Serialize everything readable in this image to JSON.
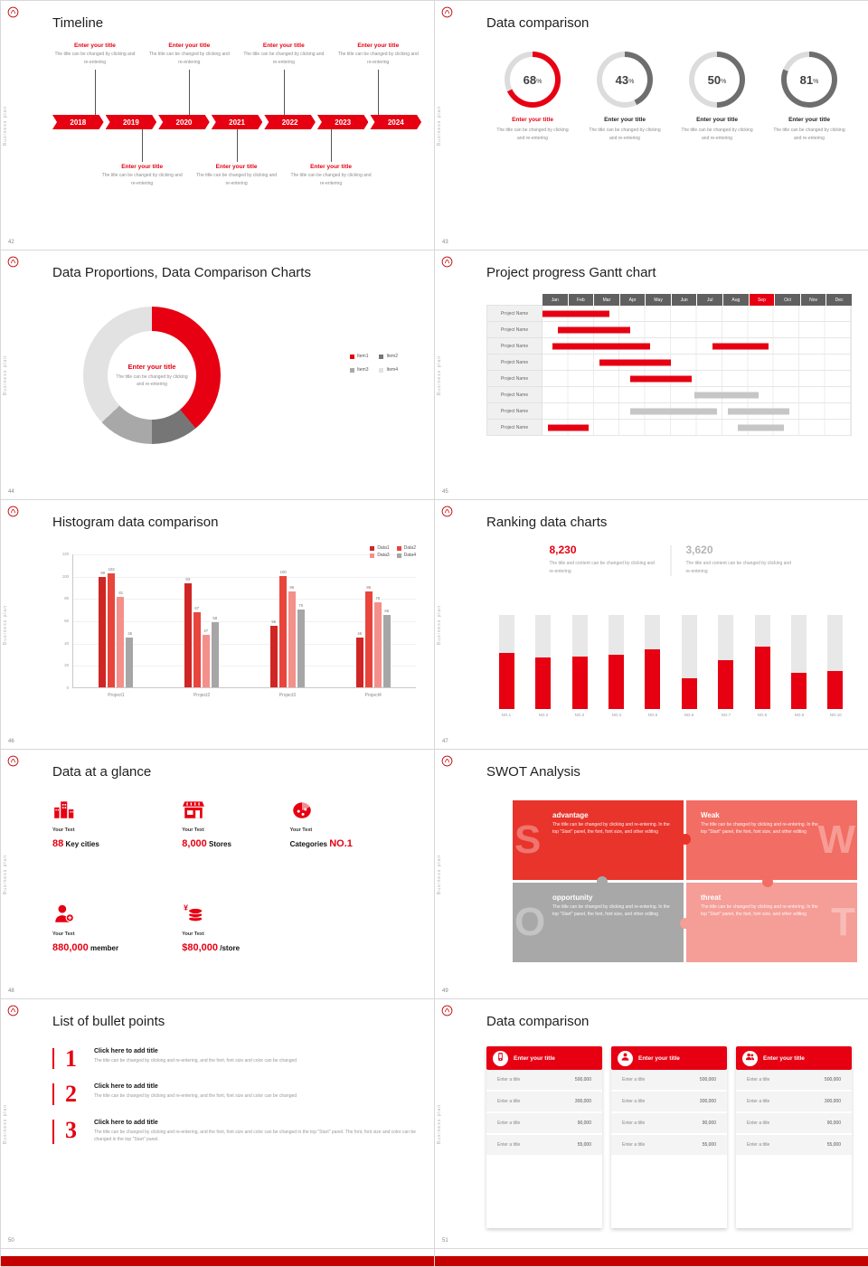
{
  "global": {
    "accent": "#e60012",
    "vertical_text": "Business plan"
  },
  "s42": {
    "page": "42",
    "title": "Timeline",
    "years": [
      "2018",
      "2019",
      "2020",
      "2021",
      "2022",
      "2023",
      "2024"
    ],
    "top_entries": [
      {
        "title": "Enter your title",
        "desc": "The title can be changed by clicking and re-entering"
      },
      {
        "title": "Enter your title",
        "desc": "The title can be changed by clicking and re-entering"
      },
      {
        "title": "Enter your title",
        "desc": "The title can be changed by clicking and re-entering"
      },
      {
        "title": "Enter your title",
        "desc": "The title can be changed by clicking and re-entering"
      }
    ],
    "bottom_entries": [
      {
        "title": "Enter your title",
        "desc": "The title can be changed by clicking and re-entering"
      },
      {
        "title": "Enter your title",
        "desc": "The title can be changed by clicking and re-entering"
      },
      {
        "title": "Enter your title",
        "desc": "The title can be changed by clicking and re-entering"
      }
    ]
  },
  "s43": {
    "page": "43",
    "title": "Data comparison",
    "rings": [
      {
        "value": 68,
        "arc": "#e60012",
        "title": "Enter your title",
        "title_color": "#e60012",
        "desc": "The title can be changed by clicking and re-entering"
      },
      {
        "value": 43,
        "arc": "#6e6e6e",
        "title": "Enter your title",
        "title_color": "#222222",
        "desc": "The title can be changed by clicking and re-entering"
      },
      {
        "value": 50,
        "arc": "#6e6e6e",
        "title": "Enter your title",
        "title_color": "#222222",
        "desc": "The title can be changed by clicking and re-entering"
      },
      {
        "value": 81,
        "arc": "#6e6e6e",
        "title": "Enter your title",
        "title_color": "#222222",
        "desc": "The title can be changed by clicking and re-entering"
      }
    ]
  },
  "s44": {
    "page": "44",
    "title": "Data Proportions, Data Comparison Charts",
    "chart_data": {
      "type": "pie",
      "items": [
        {
          "label": "Item1",
          "value": 39,
          "color": "#e60012"
        },
        {
          "label": "Item2",
          "value": 11,
          "color": "#767676"
        },
        {
          "label": "Item3",
          "value": 13,
          "color": "#a8a8a8"
        },
        {
          "label": "Item4",
          "value": 37,
          "color": "#e2e2e2"
        }
      ],
      "center_title": "Enter your title",
      "center_desc": "The title can be changed by clicking and re-entering"
    }
  },
  "s45": {
    "page": "45",
    "title": "Project progress Gantt chart",
    "months": [
      "Jan",
      "Feb",
      "Mar",
      "Apr",
      "May",
      "Jun",
      "Jul",
      "Aug",
      "Sep",
      "Oct",
      "Nov",
      "Dec"
    ],
    "highlight_month": 8,
    "rows": [
      {
        "label": "Project Name",
        "bars": [
          {
            "start": 0,
            "end": 2.6,
            "color": "red"
          }
        ]
      },
      {
        "label": "Project Name",
        "bars": [
          {
            "start": 0.6,
            "end": 3.4,
            "color": "red"
          }
        ]
      },
      {
        "label": "Project Name",
        "bars": [
          {
            "start": 0.4,
            "end": 4.2,
            "color": "red"
          },
          {
            "start": 6.6,
            "end": 8.8,
            "color": "red"
          }
        ]
      },
      {
        "label": "Project Name",
        "bars": [
          {
            "start": 2.2,
            "end": 5.0,
            "color": "red"
          }
        ]
      },
      {
        "label": "Project Name",
        "bars": [
          {
            "start": 3.4,
            "end": 5.8,
            "color": "red"
          }
        ]
      },
      {
        "label": "Project Name",
        "bars": [
          {
            "start": 5.9,
            "end": 8.4,
            "color": "gray"
          }
        ]
      },
      {
        "label": "Project Name",
        "bars": [
          {
            "start": 3.4,
            "end": 6.8,
            "color": "gray"
          },
          {
            "start": 7.2,
            "end": 9.6,
            "color": "gray"
          }
        ]
      },
      {
        "label": "Project Name",
        "bars": [
          {
            "start": 0.2,
            "end": 1.8,
            "color": "red"
          },
          {
            "start": 7.6,
            "end": 9.4,
            "color": "gray"
          }
        ]
      }
    ]
  },
  "s46": {
    "page": "46",
    "title": "Histogram data comparison",
    "chart_data": {
      "type": "bar",
      "categories": [
        "Project1",
        "Project2",
        "Project3",
        "Project4"
      ],
      "series": [
        {
          "name": "Data1",
          "color": "#d02525",
          "values": [
            99,
            93,
            55,
            45
          ]
        },
        {
          "name": "Data2",
          "color": "#e8453c",
          "values": [
            102,
            67,
            100,
            86
          ]
        },
        {
          "name": "Data3",
          "color": "#f58f8a",
          "values": [
            81,
            47,
            86,
            76
          ]
        },
        {
          "name": "Data4",
          "color": "#a6a6a6",
          "values": [
            45,
            58,
            70,
            65
          ]
        }
      ],
      "ylim": [
        0,
        120
      ],
      "yticks": [
        "0",
        "20",
        "40",
        "60",
        "80",
        "100",
        "120"
      ]
    }
  },
  "s47": {
    "page": "47",
    "title": "Ranking data charts",
    "stat_left": {
      "value": "8,230",
      "color": "#e60012",
      "desc": "The title and content can be changed by clicking and re-entering"
    },
    "stat_right": {
      "value": "3,620",
      "color": "#b5b5b5",
      "desc": "The title and content can be changed by clicking and re-entering"
    },
    "chart_data": {
      "type": "bar",
      "categories": [
        "NO.1",
        "NO.2",
        "NO.3",
        "NO.4",
        "NO.5",
        "NO.6",
        "NO.7",
        "NO.8",
        "NO.9",
        "NO.10"
      ],
      "values": [
        60,
        55,
        56,
        58,
        63,
        33,
        52,
        66,
        38,
        40
      ],
      "max": 100
    }
  },
  "s48": {
    "page": "48",
    "title": "Data at a glance",
    "items": [
      {
        "icon": "city-buildings-icon",
        "label": "Your Text",
        "parts": [
          {
            "text": "88",
            "accent": true
          },
          {
            "text": " Key cities",
            "accent": false
          }
        ]
      },
      {
        "icon": "store-icon",
        "label": "Your Text",
        "parts": [
          {
            "text": "8,000",
            "accent": true
          },
          {
            "text": " Stores",
            "accent": false
          }
        ]
      },
      {
        "icon": "category-wheel-icon",
        "label": "Your Text",
        "parts": [
          {
            "text": "Categories ",
            "accent": false
          },
          {
            "text": "NO.1",
            "accent": true
          }
        ]
      },
      {
        "icon": "member-icon",
        "label": "Your Text",
        "parts": [
          {
            "text": "880,000",
            "accent": true
          },
          {
            "text": " member",
            "accent": false
          }
        ]
      },
      {
        "icon": "coins-icon",
        "label": "Your Text",
        "parts": [
          {
            "text": "$80,000",
            "accent": true
          },
          {
            "text": " /store",
            "accent": false
          }
        ]
      }
    ]
  },
  "s49": {
    "page": "49",
    "title": "SWOT Analysis",
    "quadrants": [
      {
        "letter": "S",
        "title": "advantage",
        "color": "#e8342b",
        "side": "left",
        "desc": "The title can be changed by clicking and re-entering. In the top \"Start\" panel, the font, font size, and other editing"
      },
      {
        "letter": "W",
        "title": "Weak",
        "color": "#f26d64",
        "side": "right",
        "desc": "The title can be changed by clicking and re-entering. In the top \"Start\" panel, the font, font size, and other editing"
      },
      {
        "letter": "O",
        "title": "opportunity",
        "color": "#a8a8a8",
        "side": "left",
        "desc": "The title can be changed by clicking and re-entering. In the top \"Start\" panel, the font, font size, and other editing"
      },
      {
        "letter": "T",
        "title": "threat",
        "color": "#f59d97",
        "side": "right",
        "desc": "The title can be changed by clicking and re-entering. In the top \"Start\" panel, the font, font size, and other editing"
      }
    ]
  },
  "s50": {
    "page": "50",
    "title": "List of bullet points",
    "items": [
      {
        "num": "1",
        "title": "Click here to add title",
        "desc": "The title can be changed by clicking and re-entering, and the font, font size and color can be changed"
      },
      {
        "num": "2",
        "title": "Click here to add title",
        "desc": "The title can be changed by clicking and re-entering, and the font, font size and color can be changed"
      },
      {
        "num": "3",
        "title": "Click here to add title",
        "desc": "The title can be changed by clicking and re-entering, and the font, font size and color can be changed in the top \"Start\" panel. The font, font size and color can be changed in the top \"Start\" panel."
      }
    ]
  },
  "s51": {
    "page": "51",
    "title": "Data comparison",
    "cards": [
      {
        "icon": "device-icon",
        "header": "Enter your title",
        "rows": [
          {
            "label": "Enter a title",
            "value": "500,000"
          },
          {
            "label": "Enter a title",
            "value": "300,000"
          },
          {
            "label": "Enter a title",
            "value": "90,000"
          },
          {
            "label": "Enter a title",
            "value": "55,000"
          }
        ]
      },
      {
        "icon": "user-icon",
        "header": "Enter your title",
        "rows": [
          {
            "label": "Enter a title",
            "value": "500,000"
          },
          {
            "label": "Enter a title",
            "value": "300,000"
          },
          {
            "label": "Enter a title",
            "value": "90,000"
          },
          {
            "label": "Enter a title",
            "value": "55,000"
          }
        ]
      },
      {
        "icon": "users-icon",
        "header": "Enter your title",
        "rows": [
          {
            "label": "Enter a title",
            "value": "500,000"
          },
          {
            "label": "Enter a title",
            "value": "300,000"
          },
          {
            "label": "Enter a title",
            "value": "90,000"
          },
          {
            "label": "Enter a title",
            "value": "55,000"
          }
        ]
      }
    ]
  }
}
